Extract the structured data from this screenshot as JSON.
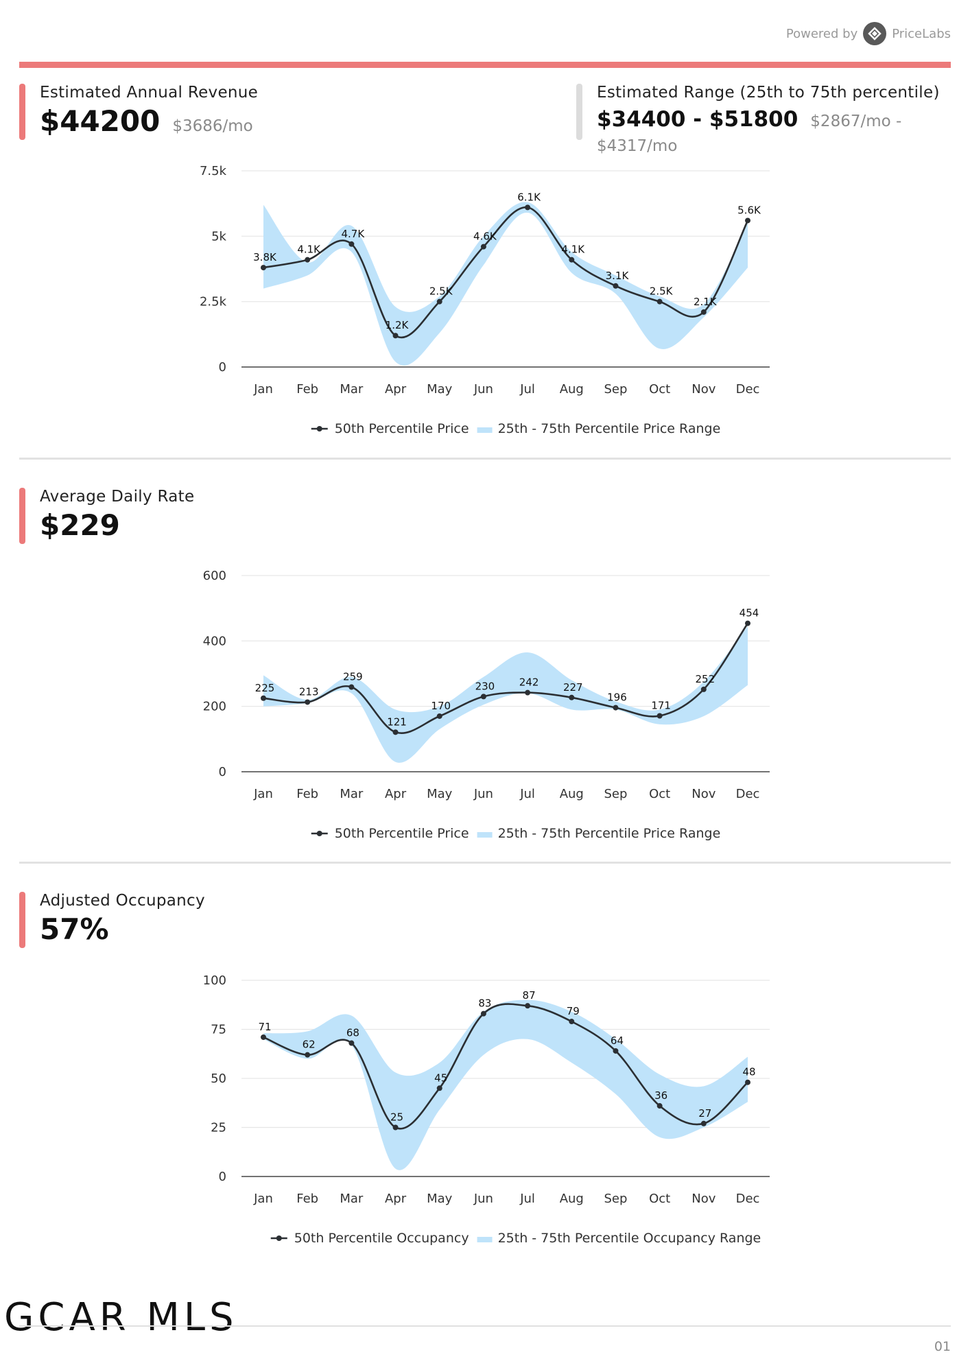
{
  "header": {
    "powered_by": "Powered by",
    "brand": "PriceLabs",
    "brand_icon": "pricelabs-logo-icon"
  },
  "colors": {
    "accent": "#ec7a7a",
    "band": "#bfe3fa",
    "line": "#2b2f33"
  },
  "revenue": {
    "label": "Estimated Annual Revenue",
    "value": "$44200",
    "per_month": "$3686/mo",
    "range_label": "Estimated Range (25th to 75th percentile)",
    "range_value": "$34400 - $51800",
    "range_per_month": "$2867/mo - $4317/mo"
  },
  "adr": {
    "label": "Average Daily Rate",
    "value": "$229"
  },
  "occupancy": {
    "label": "Adjusted Occupancy",
    "value": "57%"
  },
  "footer": {
    "logo_text": "GCAR MLS",
    "page": "01"
  },
  "chart_data": [
    {
      "type": "line",
      "categories": [
        "Jan",
        "Feb",
        "Mar",
        "Apr",
        "May",
        "Jun",
        "Jul",
        "Aug",
        "Sep",
        "Oct",
        "Nov",
        "Dec"
      ],
      "ylim": [
        0,
        7500
      ],
      "yticks": [
        0,
        2500,
        5000,
        7500
      ],
      "ytick_labels": [
        "0",
        "2.5k",
        "5k",
        "7.5k"
      ],
      "series": [
        {
          "name": "50th Percentile Price",
          "values": [
            3800,
            4100,
            4700,
            1200,
            2500,
            4600,
            6100,
            4100,
            3100,
            2500,
            2100,
            5600
          ],
          "labels": [
            "3.8K",
            "4.1K",
            "4.7K",
            "1.2K",
            "2.5K",
            "4.6K",
            "6.1K",
            "4.1K",
            "3.1K",
            "2.5K",
            "2.1K",
            "5.6K"
          ]
        },
        {
          "name": "25th - 75th Percentile Price Range",
          "low": [
            3000,
            3500,
            4400,
            200,
            1300,
            3900,
            5900,
            3600,
            2800,
            700,
            1900,
            3800
          ],
          "high": [
            6200,
            4000,
            5400,
            2300,
            2700,
            5000,
            6300,
            4400,
            3500,
            2700,
            2400,
            5500
          ]
        }
      ],
      "grid": true,
      "legend": "bottom"
    },
    {
      "type": "line",
      "categories": [
        "Jan",
        "Feb",
        "Mar",
        "Apr",
        "May",
        "Jun",
        "Jul",
        "Aug",
        "Sep",
        "Oct",
        "Nov",
        "Dec"
      ],
      "ylim": [
        0,
        600
      ],
      "yticks": [
        0,
        200,
        400,
        600
      ],
      "ytick_labels": [
        "0",
        "200",
        "400",
        "600"
      ],
      "series": [
        {
          "name": "50th Percentile Price",
          "values": [
            225,
            213,
            259,
            121,
            170,
            230,
            242,
            227,
            196,
            171,
            252,
            454
          ],
          "labels": [
            "225",
            "213",
            "259",
            "121",
            "170",
            "230",
            "242",
            "227",
            "196",
            "171",
            "252",
            "454"
          ]
        },
        {
          "name": "25th - 75th Percentile Price Range",
          "low": [
            200,
            210,
            240,
            30,
            130,
            205,
            240,
            190,
            190,
            145,
            170,
            265
          ],
          "high": [
            295,
            220,
            290,
            190,
            200,
            290,
            365,
            280,
            215,
            190,
            275,
            445
          ]
        }
      ],
      "grid": true,
      "legend": "bottom"
    },
    {
      "type": "line",
      "categories": [
        "Jan",
        "Feb",
        "Mar",
        "Apr",
        "May",
        "Jun",
        "Jul",
        "Aug",
        "Sep",
        "Oct",
        "Nov",
        "Dec"
      ],
      "ylim": [
        0,
        100
      ],
      "yticks": [
        0,
        25,
        50,
        75,
        100
      ],
      "ytick_labels": [
        "0",
        "25",
        "50",
        "75",
        "100"
      ],
      "series": [
        {
          "name": "50th Percentile Occupancy",
          "values": [
            71,
            62,
            68,
            25,
            45,
            83,
            87,
            79,
            64,
            36,
            27,
            48
          ],
          "labels": [
            "71",
            "62",
            "68",
            "25",
            "45",
            "83",
            "87",
            "79",
            "64",
            "36",
            "27",
            "48"
          ]
        },
        {
          "name": "25th - 75th Percentile Occupancy Range",
          "low": [
            70,
            60,
            67,
            4,
            34,
            62,
            70,
            58,
            42,
            20,
            25,
            38
          ],
          "high": [
            73,
            74,
            82,
            53,
            58,
            84,
            90,
            84,
            70,
            52,
            46,
            61
          ]
        }
      ],
      "grid": true,
      "legend": "bottom"
    }
  ]
}
